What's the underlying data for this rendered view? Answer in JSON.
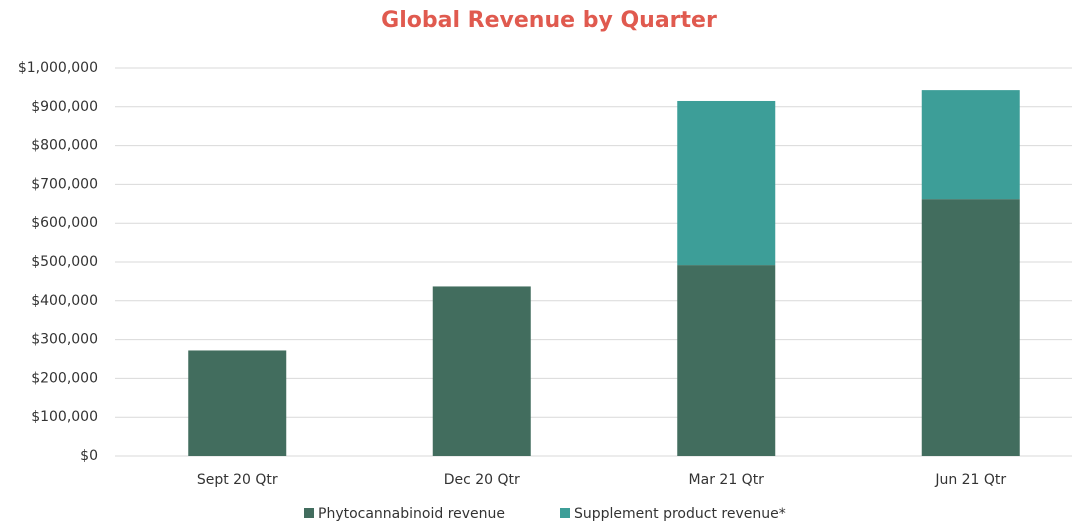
{
  "chart_data": {
    "type": "stacked_bar",
    "title": "Global Revenue by Quarter",
    "categories": [
      "Sept 20 Qtr",
      "Dec 20 Qtr",
      "Mar 21 Qtr",
      "Jun 21 Qtr"
    ],
    "series": [
      {
        "name": "Phytocannabinoid revenue",
        "color": "#426d5e",
        "values": [
          272000,
          437000,
          492000,
          662000
        ]
      },
      {
        "name": "Supplement product revenue*",
        "color": "#3d9e98",
        "values": [
          0,
          0,
          423000,
          281000
        ]
      }
    ],
    "ylim": [
      0,
      1000000
    ],
    "yticks": [
      {
        "value": 0,
        "label": "$0"
      },
      {
        "value": 100000,
        "label": "$100,000"
      },
      {
        "value": 200000,
        "label": "$200,000"
      },
      {
        "value": 300000,
        "label": "$300,000"
      },
      {
        "value": 400000,
        "label": "$400,000"
      },
      {
        "value": 500000,
        "label": "$500,000"
      },
      {
        "value": 600000,
        "label": "$600,000"
      },
      {
        "value": 700000,
        "label": "$700,000"
      },
      {
        "value": 800000,
        "label": "$800,000"
      },
      {
        "value": 900000,
        "label": "$900,000"
      },
      {
        "value": 1000000,
        "label": "$1,000,000"
      }
    ],
    "grid": true,
    "legend": "bottom"
  }
}
